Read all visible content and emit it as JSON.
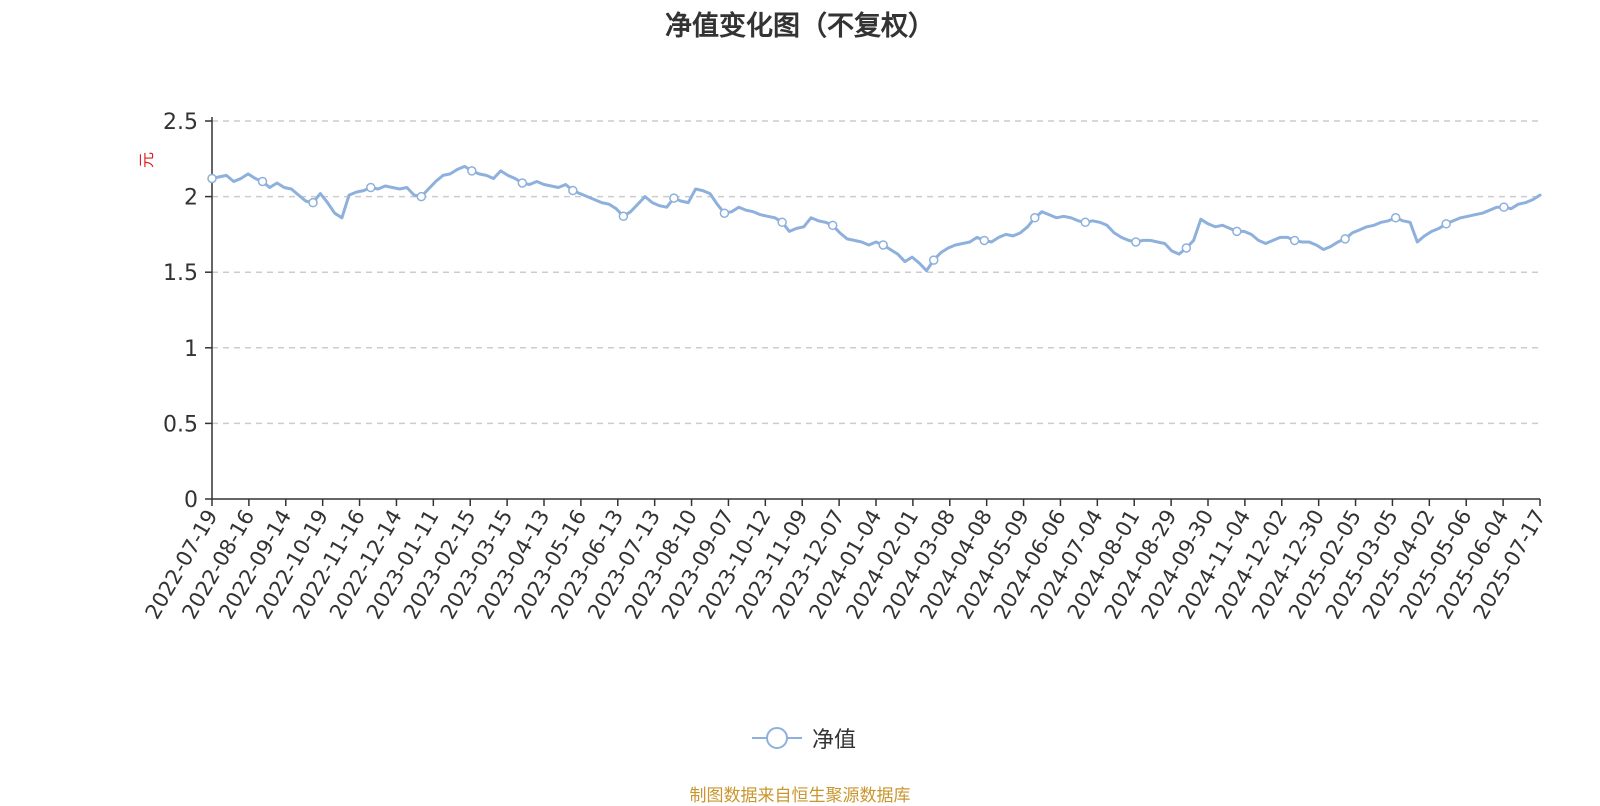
{
  "chart_data": {
    "type": "line",
    "title": "净值变化图（不复权）",
    "ylabel": "元",
    "ylim": [
      0,
      2.5
    ],
    "yticks": [
      "0",
      "0.5",
      "1",
      "1.5",
      "2",
      "2.5"
    ],
    "xtick_labels": [
      "2022-07-19",
      "2022-08-16",
      "2022-09-14",
      "2022-10-19",
      "2022-11-16",
      "2022-12-14",
      "2023-01-11",
      "2023-02-15",
      "2023-03-15",
      "2023-04-13",
      "2023-05-16",
      "2023-06-13",
      "2023-07-13",
      "2023-08-10",
      "2023-09-07",
      "2023-10-12",
      "2023-11-09",
      "2023-12-07",
      "2024-01-04",
      "2024-02-01",
      "2024-03-08",
      "2024-04-08",
      "2024-05-09",
      "2024-06-06",
      "2024-07-04",
      "2024-08-01",
      "2024-08-29",
      "2024-09-30",
      "2024-11-04",
      "2024-12-02",
      "2024-12-30",
      "2025-02-05",
      "2025-03-05",
      "2025-04-02",
      "2025-05-06",
      "2025-06-04",
      "2025-07-17"
    ],
    "grid": "horizontal dashed",
    "legend_position": "bottom-center",
    "series": [
      {
        "name": "净值",
        "color": "#8eb0dc",
        "values": [
          2.12,
          2.13,
          2.14,
          2.1,
          2.12,
          2.15,
          2.12,
          2.1,
          2.06,
          2.09,
          2.06,
          2.05,
          2.01,
          1.97,
          1.96,
          2.02,
          1.96,
          1.89,
          1.86,
          2.01,
          2.03,
          2.04,
          2.06,
          2.05,
          2.07,
          2.06,
          2.05,
          2.06,
          2.01,
          2.0,
          2.05,
          2.1,
          2.14,
          2.15,
          2.18,
          2.2,
          2.17,
          2.15,
          2.14,
          2.12,
          2.17,
          2.14,
          2.12,
          2.09,
          2.08,
          2.1,
          2.08,
          2.07,
          2.06,
          2.08,
          2.04,
          2.02,
          2.0,
          1.98,
          1.96,
          1.95,
          1.92,
          1.87,
          1.9,
          1.95,
          2.0,
          1.96,
          1.94,
          1.93,
          1.99,
          1.97,
          1.96,
          2.05,
          2.04,
          2.02,
          1.95,
          1.89,
          1.9,
          1.93,
          1.91,
          1.9,
          1.88,
          1.87,
          1.86,
          1.83,
          1.77,
          1.79,
          1.8,
          1.86,
          1.84,
          1.83,
          1.81,
          1.76,
          1.72,
          1.71,
          1.7,
          1.68,
          1.7,
          1.68,
          1.65,
          1.62,
          1.57,
          1.6,
          1.56,
          1.51,
          1.58,
          1.63,
          1.66,
          1.68,
          1.69,
          1.7,
          1.73,
          1.71,
          1.7,
          1.73,
          1.75,
          1.74,
          1.76,
          1.8,
          1.86,
          1.9,
          1.88,
          1.86,
          1.87,
          1.86,
          1.84,
          1.83,
          1.84,
          1.83,
          1.81,
          1.76,
          1.73,
          1.71,
          1.7,
          1.71,
          1.71,
          1.7,
          1.69,
          1.64,
          1.62,
          1.66,
          1.71,
          1.85,
          1.82,
          1.8,
          1.81,
          1.79,
          1.77,
          1.77,
          1.75,
          1.71,
          1.69,
          1.71,
          1.73,
          1.73,
          1.71,
          1.7,
          1.7,
          1.68,
          1.65,
          1.67,
          1.7,
          1.72,
          1.76,
          1.78,
          1.8,
          1.81,
          1.83,
          1.84,
          1.86,
          1.84,
          1.83,
          1.7,
          1.74,
          1.77,
          1.79,
          1.82,
          1.84,
          1.86,
          1.87,
          1.88,
          1.89,
          1.91,
          1.93,
          1.93,
          1.92,
          1.95,
          1.96,
          1.98,
          2.01
        ]
      }
    ],
    "marker_indices": [
      0,
      7,
      14,
      22,
      29,
      36,
      43,
      50,
      57,
      64,
      71,
      79,
      86,
      93,
      100,
      107,
      114,
      121,
      128,
      135,
      142,
      150,
      157,
      164,
      171,
      179,
      186
    ]
  },
  "source_note": "制图数据来自恒生聚源数据库"
}
